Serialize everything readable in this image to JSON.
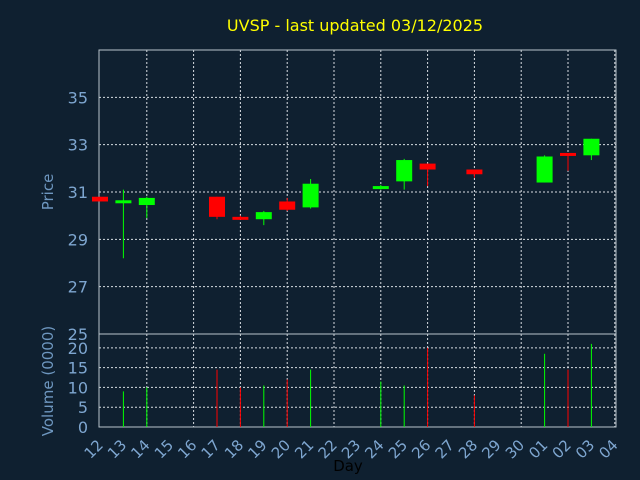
{
  "chart_data": [
    {
      "type": "candlestick",
      "title": "UVSP - last updated 03/12/2025",
      "ylabel": "Price",
      "ylim": [
        25,
        37
      ],
      "yticks": [
        25,
        27,
        29,
        31,
        33,
        35
      ],
      "grid": true,
      "colors": {
        "up": "#00ff00",
        "down": "#ff0000",
        "background": "#0f2030",
        "title": "#ffff00",
        "axis_text": "#6e97c0"
      },
      "candles": [
        {
          "x": "12",
          "open": 30.8,
          "high": 30.8,
          "low": 30.6,
          "close": 30.6
        },
        {
          "x": "13",
          "open": 30.6,
          "high": 31.1,
          "low": 28.2,
          "close": 30.65
        },
        {
          "x": "14",
          "open": 30.45,
          "high": 30.8,
          "low": 29.9,
          "close": 30.75
        },
        {
          "x": "17",
          "open": 30.8,
          "high": 30.8,
          "low": 29.85,
          "close": 29.95
        },
        {
          "x": "18",
          "open": 29.95,
          "high": 30.0,
          "low": 29.85,
          "close": 29.9
        },
        {
          "x": "19",
          "open": 29.85,
          "high": 30.2,
          "low": 29.6,
          "close": 30.15
        },
        {
          "x": "20",
          "open": 30.6,
          "high": 30.75,
          "low": 30.2,
          "close": 30.25
        },
        {
          "x": "21",
          "open": 30.35,
          "high": 31.55,
          "low": 30.3,
          "close": 31.35
        },
        {
          "x": "24",
          "open": 31.15,
          "high": 31.3,
          "low": 31.1,
          "close": 31.25
        },
        {
          "x": "25",
          "open": 31.45,
          "high": 32.4,
          "low": 31.1,
          "close": 32.35
        },
        {
          "x": "26",
          "open": 32.2,
          "high": 32.2,
          "low": 31.25,
          "close": 31.95
        },
        {
          "x": "28",
          "open": 31.95,
          "high": 31.95,
          "low": 31.6,
          "close": 31.75
        },
        {
          "x": "01",
          "open": 31.4,
          "high": 32.55,
          "low": 31.4,
          "close": 32.5
        },
        {
          "x": "02",
          "open": 32.65,
          "high": 32.65,
          "low": 31.9,
          "close": 32.55
        },
        {
          "x": "03",
          "open": 32.55,
          "high": 33.25,
          "low": 32.35,
          "close": 33.25
        }
      ]
    },
    {
      "type": "bar",
      "ylabel": "Volume (0000)",
      "xlabel": "Day",
      "ylim": [
        0,
        23.5
      ],
      "yticks": [
        0,
        5,
        10,
        15,
        20
      ],
      "grid": true,
      "categories": [
        "12",
        "13",
        "14",
        "15",
        "16",
        "17",
        "18",
        "19",
        "20",
        "21",
        "22",
        "23",
        "24",
        "25",
        "26",
        "27",
        "28",
        "29",
        "30",
        "01",
        "02",
        "03",
        "04"
      ],
      "bars": [
        {
          "x": "13",
          "value": 9,
          "dir": "up"
        },
        {
          "x": "14",
          "value": 10,
          "dir": "up"
        },
        {
          "x": "17",
          "value": 14.5,
          "dir": "down"
        },
        {
          "x": "18",
          "value": 10,
          "dir": "down"
        },
        {
          "x": "19",
          "value": 10.5,
          "dir": "up"
        },
        {
          "x": "20",
          "value": 12,
          "dir": "down"
        },
        {
          "x": "21",
          "value": 14.5,
          "dir": "up"
        },
        {
          "x": "24",
          "value": 11.5,
          "dir": "up"
        },
        {
          "x": "25",
          "value": 10.5,
          "dir": "up"
        },
        {
          "x": "26",
          "value": 20,
          "dir": "down"
        },
        {
          "x": "28",
          "value": 8,
          "dir": "down"
        },
        {
          "x": "01",
          "value": 18.5,
          "dir": "up"
        },
        {
          "x": "02",
          "value": 14.5,
          "dir": "down"
        },
        {
          "x": "03",
          "value": 21,
          "dir": "up"
        }
      ]
    }
  ]
}
